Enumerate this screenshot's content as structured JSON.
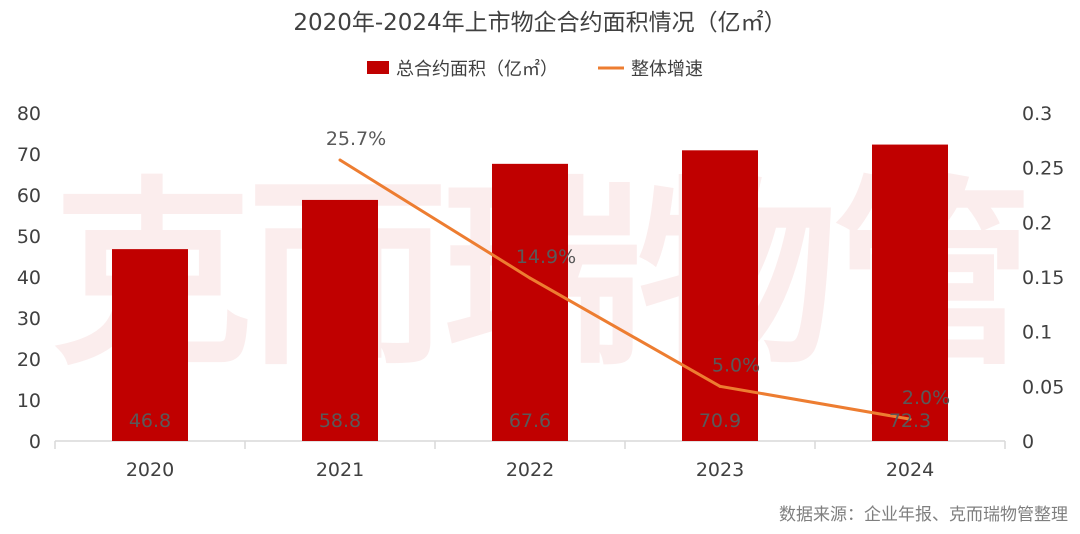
{
  "chart_data": {
    "type": "bar+line",
    "title": "2020年-2024年上市物企合约面积情况（亿㎡）",
    "categories": [
      "2020",
      "2021",
      "2022",
      "2023",
      "2024"
    ],
    "series": [
      {
        "name": "总合约面积（亿㎡）",
        "type": "bar",
        "axis": "left",
        "values": [
          46.8,
          58.8,
          67.6,
          70.9,
          72.3
        ],
        "labels": [
          "46.8",
          "58.8",
          "67.6",
          "70.9",
          "72.3"
        ],
        "color": "#C00000"
      },
      {
        "name": "整体增速",
        "type": "line",
        "axis": "right",
        "values": [
          null,
          0.257,
          0.149,
          0.05,
          0.02
        ],
        "labels": [
          "",
          "25.7%",
          "14.9%",
          "5.0%",
          "2.0%"
        ],
        "color": "#ED7D31"
      }
    ],
    "y_left": {
      "range": [
        0,
        80
      ],
      "ticks": [
        "0",
        "10",
        "20",
        "30",
        "40",
        "50",
        "60",
        "70",
        "80"
      ]
    },
    "y_right": {
      "range": [
        0,
        0.3
      ],
      "ticks": [
        "0",
        "0.05",
        "0.1",
        "0.15",
        "0.2",
        "0.25",
        "0.3"
      ]
    },
    "grid": false,
    "legend": "top-center"
  },
  "watermark": "克而瑞物管",
  "source": "数据来源：企业年报、克而瑞物管整理"
}
